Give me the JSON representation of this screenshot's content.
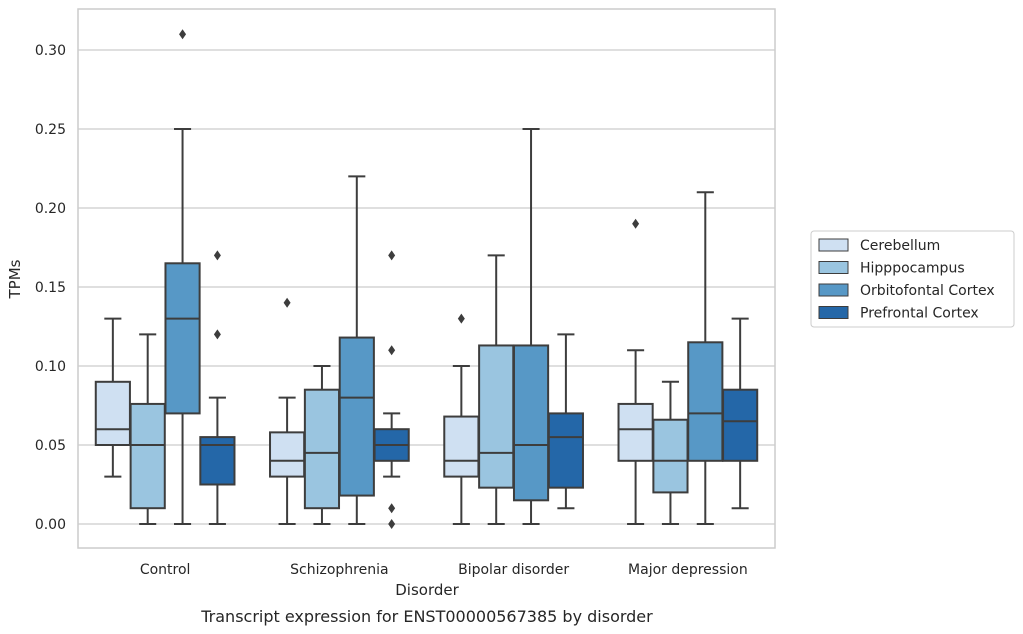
{
  "chart_data": {
    "type": "boxplot",
    "title": "",
    "caption": "Transcript expression for ENST00000567385 by disorder",
    "xlabel": "Disorder",
    "ylabel": "TPMs",
    "ylim": [
      -0.015,
      0.325
    ],
    "yticks": [
      "0.00",
      "0.05",
      "0.10",
      "0.15",
      "0.20",
      "0.25",
      "0.30"
    ],
    "ytick_values": [
      0.0,
      0.05,
      0.1,
      0.15,
      0.2,
      0.25,
      0.3
    ],
    "grid": "horizontal",
    "legend_position": "right",
    "categories": [
      "Control",
      "Schizophrenia",
      "Bipolar disorder",
      "Major depression"
    ],
    "series": [
      {
        "name": "Cerebellum",
        "color": "#cfe0f2",
        "boxes": [
          {
            "whisker_low": 0.03,
            "q1": 0.05,
            "median": 0.06,
            "q3": 0.09,
            "whisker_high": 0.13,
            "outliers": []
          },
          {
            "whisker_low": 0.0,
            "q1": 0.03,
            "median": 0.04,
            "q3": 0.058,
            "whisker_high": 0.08,
            "outliers": [
              0.14
            ]
          },
          {
            "whisker_low": 0.0,
            "q1": 0.03,
            "median": 0.04,
            "q3": 0.068,
            "whisker_high": 0.1,
            "outliers": [
              0.13
            ]
          },
          {
            "whisker_low": 0.0,
            "q1": 0.04,
            "median": 0.06,
            "q3": 0.076,
            "whisker_high": 0.11,
            "outliers": [
              0.19
            ]
          }
        ]
      },
      {
        "name": "Hipppocampus",
        "color": "#9ac5e0",
        "boxes": [
          {
            "whisker_low": 0.0,
            "q1": 0.01,
            "median": 0.05,
            "q3": 0.076,
            "whisker_high": 0.12,
            "outliers": []
          },
          {
            "whisker_low": 0.0,
            "q1": 0.01,
            "median": 0.045,
            "q3": 0.085,
            "whisker_high": 0.1,
            "outliers": []
          },
          {
            "whisker_low": 0.0,
            "q1": 0.023,
            "median": 0.045,
            "q3": 0.113,
            "whisker_high": 0.17,
            "outliers": []
          },
          {
            "whisker_low": 0.0,
            "q1": 0.02,
            "median": 0.04,
            "q3": 0.066,
            "whisker_high": 0.09,
            "outliers": []
          }
        ]
      },
      {
        "name": "Orbitofontal Cortex",
        "color": "#5798c6",
        "boxes": [
          {
            "whisker_low": 0.0,
            "q1": 0.07,
            "median": 0.13,
            "q3": 0.165,
            "whisker_high": 0.25,
            "outliers": [
              0.31
            ]
          },
          {
            "whisker_low": 0.0,
            "q1": 0.018,
            "median": 0.08,
            "q3": 0.118,
            "whisker_high": 0.22,
            "outliers": []
          },
          {
            "whisker_low": 0.0,
            "q1": 0.015,
            "median": 0.05,
            "q3": 0.113,
            "whisker_high": 0.25,
            "outliers": []
          },
          {
            "whisker_low": 0.0,
            "q1": 0.04,
            "median": 0.07,
            "q3": 0.115,
            "whisker_high": 0.21,
            "outliers": []
          }
        ]
      },
      {
        "name": "Prefrontal Cortex",
        "color": "#2467a8",
        "boxes": [
          {
            "whisker_low": 0.0,
            "q1": 0.025,
            "median": 0.05,
            "q3": 0.055,
            "whisker_high": 0.08,
            "outliers": [
              0.12,
              0.17
            ]
          },
          {
            "whisker_low": 0.03,
            "q1": 0.04,
            "median": 0.05,
            "q3": 0.06,
            "whisker_high": 0.07,
            "outliers": [
              0.0,
              0.01,
              0.11,
              0.17
            ]
          },
          {
            "whisker_low": 0.01,
            "q1": 0.023,
            "median": 0.055,
            "q3": 0.07,
            "whisker_high": 0.12,
            "outliers": []
          },
          {
            "whisker_low": 0.01,
            "q1": 0.04,
            "median": 0.065,
            "q3": 0.085,
            "whisker_high": 0.13,
            "outliers": []
          }
        ]
      }
    ]
  }
}
